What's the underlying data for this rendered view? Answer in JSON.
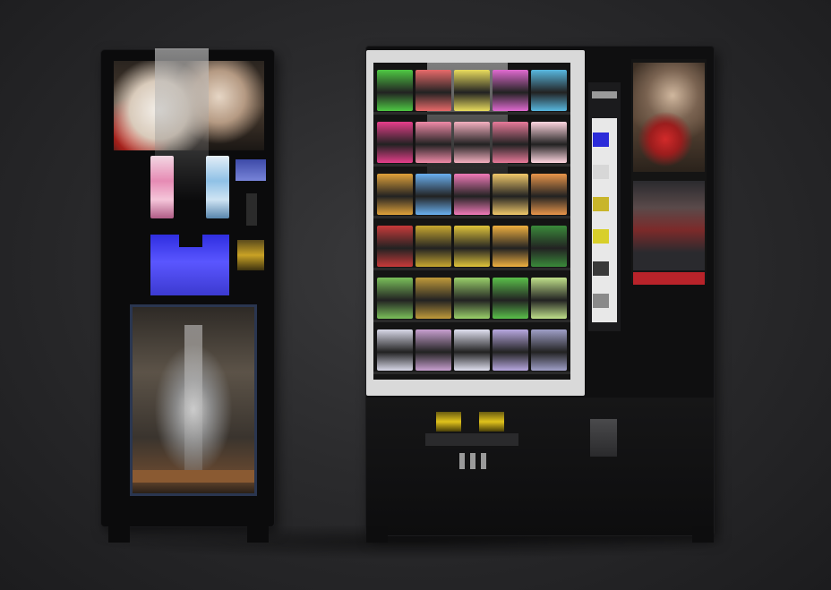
{
  "scene": {
    "background": "#2b2b2d"
  },
  "left_machine": {
    "screen_color": "#3c3ad0",
    "accent_red": "#d8302a"
  },
  "right_machine": {
    "frame_color": "#d9d9d9",
    "coin_slot_color": "#e0c21c",
    "selection_button_colors": [
      "#2b2bd9",
      "#d7d7d7",
      "#c8b52a",
      "#d8cf2a",
      "#3a3a3a",
      "#8a8a8a"
    ],
    "shelves": [
      [
        "#4ec843",
        "#e86a6a",
        "#e9dc5d",
        "#e06ad0",
        "#58b8e0"
      ],
      [
        "#e53e8a",
        "#f08aa8",
        "#f4b0c0",
        "#e87a9a",
        "#ffd6e0"
      ],
      [
        "#e0a23a",
        "#6ab0f0",
        "#f07ab8",
        "#f0c86a",
        "#e8954a"
      ],
      [
        "#c83a3a",
        "#c8a830",
        "#e0c43a",
        "#f0b040",
        "#3a8a3a"
      ],
      [
        "#7ac05a",
        "#c09a3a",
        "#9ad06a",
        "#5ac04a",
        "#c0e08a"
      ],
      [
        "#d8d8e8",
        "#c8a0d0",
        "#e0e0f0",
        "#b8a8e0",
        "#a0a0c8"
      ]
    ]
  }
}
